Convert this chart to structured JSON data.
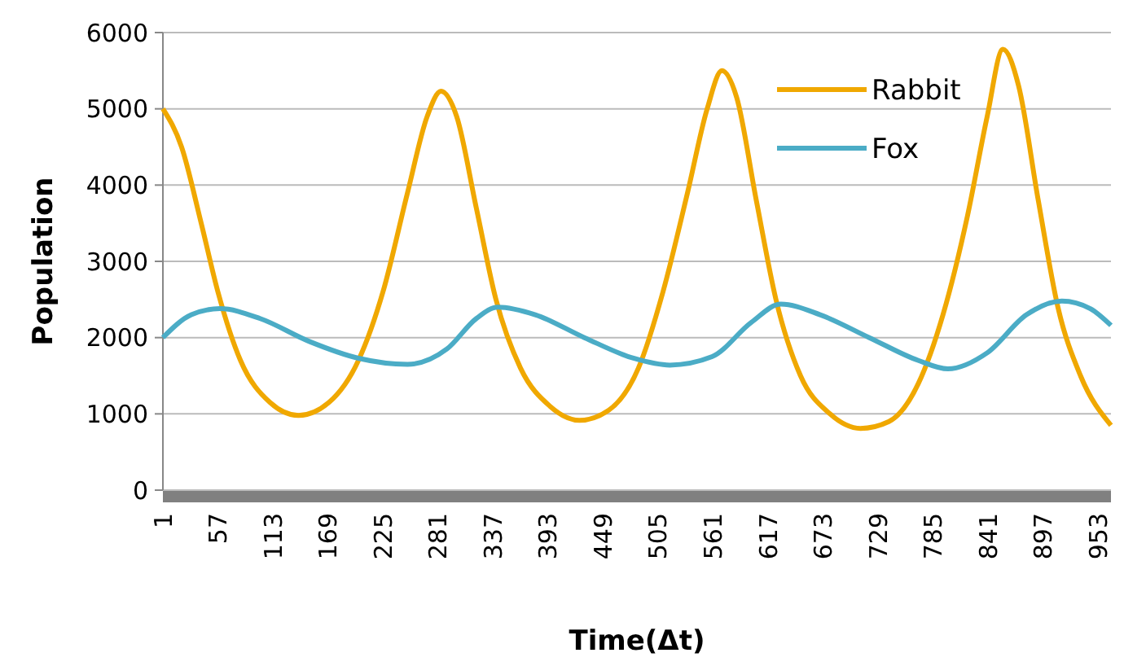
{
  "chart_data": {
    "type": "line",
    "xlabel": "Time(Δt)",
    "ylabel": "Population",
    "xlim": [
      1,
      966
    ],
    "xticks": [
      1,
      57,
      113,
      169,
      225,
      281,
      337,
      393,
      449,
      505,
      561,
      617,
      673,
      729,
      785,
      841,
      897,
      953
    ],
    "ylim": [
      0,
      6000
    ],
    "yticks": [
      0,
      1000,
      2000,
      3000,
      4000,
      5000,
      6000
    ],
    "grid": "y",
    "legend": "top right",
    "marker": "none",
    "line_style": "solid",
    "series": [
      {
        "name": "Rabbit",
        "color": "#f0a800",
        "x": [
          1,
          20,
          40,
          57,
          80,
          110,
          139,
          170,
          200,
          225,
          250,
          270,
          284,
          300,
          320,
          340,
          365,
          395,
          425,
          455,
          485,
          510,
          535,
          555,
          570,
          585,
          605,
          625,
          650,
          680,
          711,
          740,
          770,
          795,
          820,
          840,
          856,
          872,
          892,
          912,
          935,
          966
        ],
        "values": [
          5000,
          4500,
          3500,
          2600,
          1700,
          1150,
          980,
          1150,
          1700,
          2600,
          3900,
          4900,
          5230,
          4900,
          3700,
          2500,
          1600,
          1100,
          915,
          1050,
          1600,
          2600,
          3900,
          5000,
          5500,
          5150,
          3800,
          2500,
          1500,
          1000,
          810,
          900,
          1400,
          2300,
          3600,
          4900,
          5780,
          5300,
          3800,
          2400,
          1500,
          850
        ]
      },
      {
        "name": "Fox",
        "color": "#4bacc6",
        "x": [
          1,
          30,
          59,
          100,
          150,
          200,
          250,
          290,
          320,
          342,
          380,
          430,
          480,
          517,
          560,
          600,
          630,
          670,
          720,
          770,
          800,
          840,
          880,
          916,
          945,
          966
        ],
        "values": [
          2000,
          2300,
          2380,
          2250,
          1950,
          1730,
          1650,
          1850,
          2250,
          2400,
          2300,
          2000,
          1730,
          1640,
          1750,
          2200,
          2440,
          2300,
          2000,
          1700,
          1590,
          1800,
          2300,
          2480,
          2380,
          2160
        ]
      }
    ]
  }
}
